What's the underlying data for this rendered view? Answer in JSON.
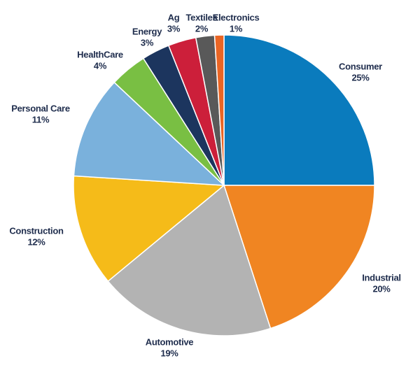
{
  "chart_data": {
    "type": "pie",
    "categories": [
      "Consumer",
      "Industrial",
      "Automotive",
      "Construction",
      "Personal Care",
      "HealthCare",
      "Energy",
      "Ag",
      "Textiles",
      "Electronics"
    ],
    "values": [
      25,
      20,
      19,
      12,
      11,
      4,
      3,
      3,
      2,
      1
    ],
    "value_labels": [
      "25%",
      "20%",
      "19%",
      "12%",
      "11%",
      "4%",
      "3%",
      "3%",
      "2%",
      "1%"
    ],
    "colors": [
      "#0a7bbd",
      "#f08522",
      "#b3b3b3",
      "#f5bb19",
      "#7ab1dc",
      "#79bf43",
      "#1c355e",
      "#cc1f3a",
      "#595959",
      "#ea6524"
    ]
  }
}
